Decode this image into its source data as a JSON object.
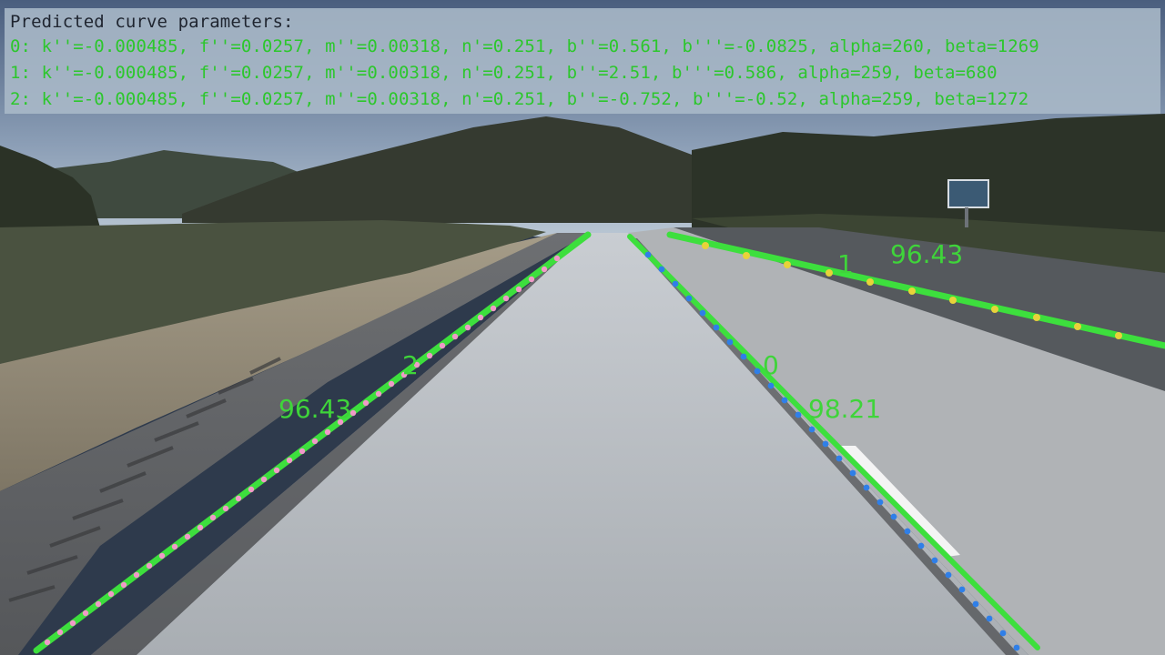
{
  "overlay": {
    "title": "Predicted curve parameters:",
    "lines": [
      "0: k''=-0.000485, f''=0.0257, m''=0.00318, n'=0.251, b''=0.561, b'''=-0.0825, alpha=260, beta=1269",
      "1: k''=-0.000485, f''=0.0257, m''=0.00318, n'=0.251, b''=2.51, b'''=0.586, alpha=259, beta=680",
      "2: k''=-0.000485, f''=0.0257, m''=0.00318, n'=0.251, b''=-0.752, b'''=-0.52, alpha=259, beta=1272"
    ]
  },
  "lanes": {
    "lane0": {
      "id": "0",
      "score": "98.21"
    },
    "lane1": {
      "id": "1",
      "score": "96.43"
    },
    "lane2": {
      "id": "2",
      "score": "96.43"
    }
  },
  "colors": {
    "lane_line": "#3ddf3d",
    "ground_truth_lane0": "#2f7fe8",
    "ground_truth_lane1": "#e8d23a",
    "ground_truth_lane2": "#f09ac8",
    "label_text": "#3fd43a"
  }
}
